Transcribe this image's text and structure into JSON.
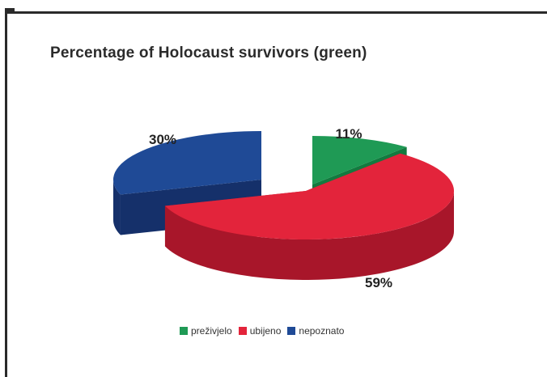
{
  "chart_data": {
    "type": "pie",
    "title": "Percentage of Holocaust survivors (green)",
    "slices": [
      {
        "label": "preživjelo",
        "value": 11,
        "display": "11%",
        "color": "#1f9a55",
        "side_color": "#137a3f"
      },
      {
        "label": "ubijeno",
        "value": 59,
        "display": "59%",
        "color": "#e3243b",
        "side_color": "#a8162a"
      },
      {
        "label": "nepoznato",
        "value": 30,
        "display": "30%",
        "color": "#1f4a96",
        "side_color": "#15306a"
      }
    ],
    "legend_position": "bottom"
  }
}
